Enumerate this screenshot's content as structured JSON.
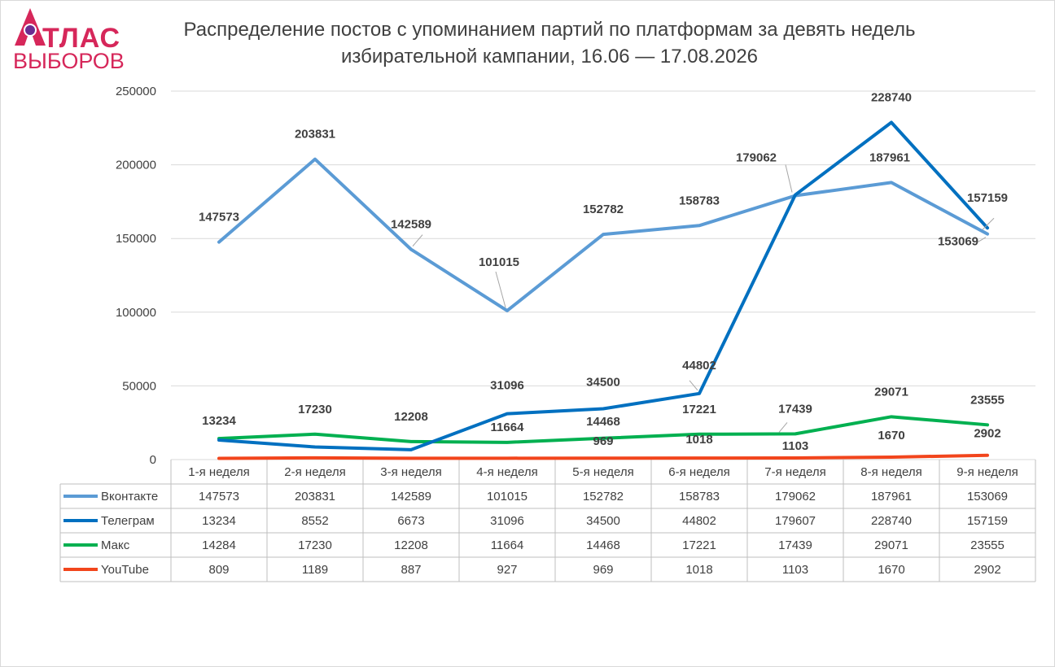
{
  "logo": {
    "line1": "ТЛАС",
    "line2": "ВЫБОРОВ"
  },
  "title_line1": "Распределение постов с упоминанием партий по платформам за девять недель",
  "title_line2": "избирательной кампании, 16.06 — 17.08.2026",
  "chart_data": {
    "type": "line",
    "categories": [
      "1-я неделя",
      "2-я неделя",
      "3-я неделя",
      "4-я неделя",
      "5-я неделя",
      "6-я неделя",
      "7-я неделя",
      "8-я неделя",
      "9-я неделя"
    ],
    "yticks": [
      0,
      50000,
      100000,
      150000,
      200000,
      250000
    ],
    "ylim": [
      0,
      250000
    ],
    "grid": true,
    "legend": "data table",
    "series": [
      {
        "name": "Вконтакте",
        "color": "#5b9bd5",
        "values": [
          147573,
          203831,
          142589,
          101015,
          152782,
          158783,
          179062,
          187961,
          153069
        ],
        "labels": [
          "147573",
          "203831",
          "142589",
          "101015",
          "152782",
          "158783",
          "179062",
          "187961",
          "153069"
        ]
      },
      {
        "name": "Телеграм",
        "color": "#0070c0",
        "values": [
          13234,
          8552,
          6673,
          31096,
          34500,
          44802,
          179607,
          228740,
          157159
        ],
        "labels": [
          "13234",
          "",
          "",
          "31096",
          "34500",
          "44802",
          "",
          "228740",
          "157159"
        ]
      },
      {
        "name": "Макс",
        "color": "#00b050",
        "values": [
          14284,
          17230,
          12208,
          11664,
          14468,
          17221,
          17439,
          29071,
          23555
        ],
        "labels": [
          "",
          "17230",
          "12208",
          "11664",
          "14468",
          "17221",
          "17439",
          "29071",
          "23555"
        ]
      },
      {
        "name": "YouTube",
        "color": "#f2451c",
        "values": [
          809,
          1189,
          887,
          927,
          969,
          1018,
          1103,
          1670,
          2902
        ],
        "labels": [
          "",
          "",
          "",
          "",
          "969",
          "1018",
          "1103",
          "1670",
          "2902"
        ]
      }
    ]
  }
}
